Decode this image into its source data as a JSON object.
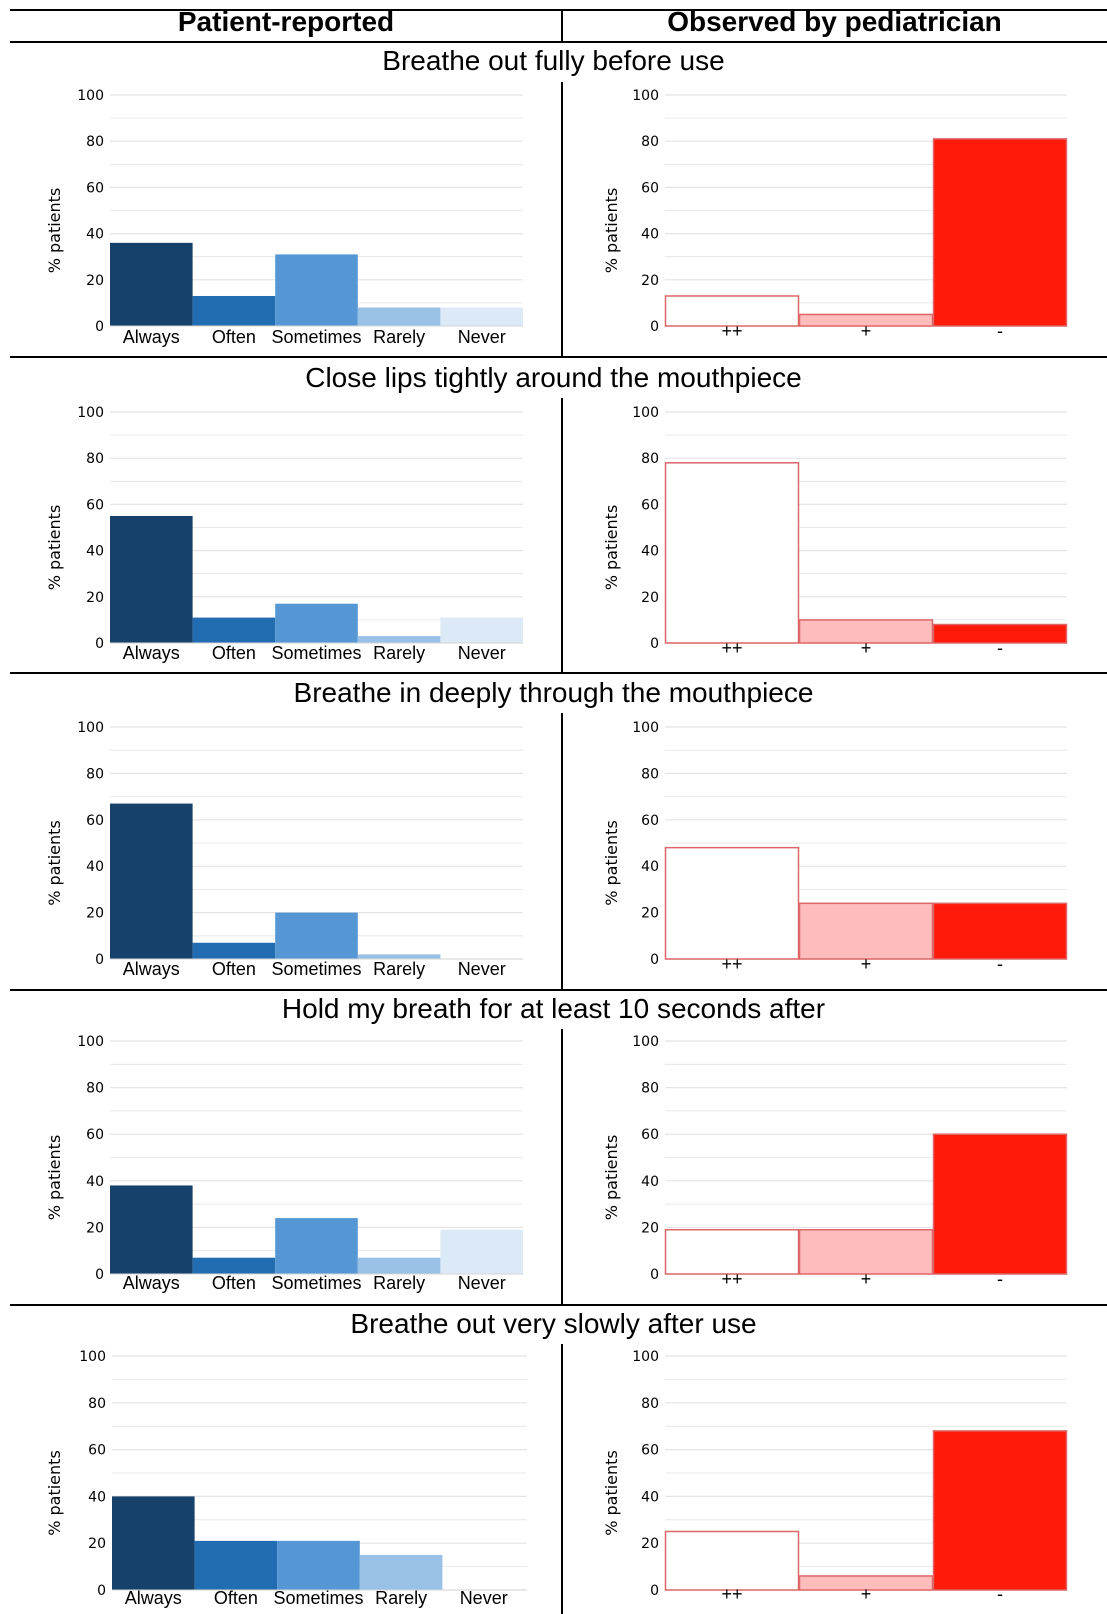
{
  "headers": {
    "left": "Patient-reported",
    "right": "Observed by pediatrician"
  },
  "colors": {
    "patient": [
      "#16416b",
      "#226db1",
      "#5497d4",
      "#99c1e6",
      "#dce9f6"
    ],
    "observer_fill": [
      "#ffffff",
      "#ffbcbc",
      "#ff1a0a"
    ],
    "observer_stroke": "#dd6666",
    "grid": "#e4e4e4"
  },
  "chart_data": [
    {
      "type": "bar",
      "title": "Breathe out fully before use",
      "panel": "Patient-reported",
      "categories": [
        "Always",
        "Often",
        "Sometimes",
        "Rarely",
        "Never"
      ],
      "values": [
        36,
        13,
        31,
        8,
        8
      ],
      "ylabel": "% patients",
      "yticks": [
        "0",
        "20",
        "40",
        "60",
        "80",
        "100"
      ],
      "ylim": [
        0,
        100
      ],
      "grid": true
    },
    {
      "type": "bar",
      "title": "Breathe out fully before use",
      "panel": "Observed by pediatrician",
      "categories": [
        "++",
        "+",
        "-"
      ],
      "values": [
        13,
        5,
        81
      ],
      "ylabel": "% patients",
      "yticks": [
        "0",
        "20",
        "40",
        "60",
        "80",
        "100"
      ],
      "ylim": [
        0,
        100
      ],
      "grid": true
    },
    {
      "type": "bar",
      "title": "Close lips tightly around the mouthpiece",
      "panel": "Patient-reported",
      "categories": [
        "Always",
        "Often",
        "Sometimes",
        "Rarely",
        "Never"
      ],
      "values": [
        55,
        11,
        17,
        3,
        11
      ],
      "ylabel": "% patients",
      "yticks": [
        "0",
        "20",
        "40",
        "60",
        "80",
        "100"
      ],
      "ylim": [
        0,
        100
      ],
      "grid": true
    },
    {
      "type": "bar",
      "title": "Close lips tightly around the mouthpiece",
      "panel": "Observed by pediatrician",
      "categories": [
        "++",
        "+",
        "-"
      ],
      "values": [
        78,
        10,
        8
      ],
      "ylabel": "% patients",
      "yticks": [
        "0",
        "20",
        "40",
        "60",
        "80",
        "100"
      ],
      "ylim": [
        0,
        100
      ],
      "grid": true
    },
    {
      "type": "bar",
      "title": "Breathe in deeply through the mouthpiece",
      "panel": "Patient-reported",
      "categories": [
        "Always",
        "Often",
        "Sometimes",
        "Rarely",
        "Never"
      ],
      "values": [
        67,
        7,
        20,
        2,
        0
      ],
      "ylabel": "% patients",
      "yticks": [
        "0",
        "20",
        "40",
        "60",
        "80",
        "100"
      ],
      "ylim": [
        0,
        100
      ],
      "grid": true
    },
    {
      "type": "bar",
      "title": "Breathe in deeply through the mouthpiece",
      "panel": "Observed by pediatrician",
      "categories": [
        "++",
        "+",
        "-"
      ],
      "values": [
        48,
        24,
        24
      ],
      "ylabel": "% patients",
      "yticks": [
        "0",
        "20",
        "40",
        "60",
        "80",
        "100"
      ],
      "ylim": [
        0,
        100
      ],
      "grid": true
    },
    {
      "type": "bar",
      "title": "Hold my breath for at least 10 seconds after",
      "panel": "Patient-reported",
      "categories": [
        "Always",
        "Often",
        "Sometimes",
        "Rarely",
        "Never"
      ],
      "values": [
        38,
        7,
        24,
        7,
        19
      ],
      "ylabel": "% patients",
      "yticks": [
        "0",
        "20",
        "40",
        "60",
        "80",
        "100"
      ],
      "ylim": [
        0,
        100
      ],
      "grid": true
    },
    {
      "type": "bar",
      "title": "Hold my breath for at least 10 seconds after",
      "panel": "Observed by pediatrician",
      "categories": [
        "++",
        "+",
        "-"
      ],
      "values": [
        19,
        19,
        60
      ],
      "ylabel": "% patients",
      "yticks": [
        "0",
        "20",
        "40",
        "60",
        "80",
        "100"
      ],
      "ylim": [
        0,
        100
      ],
      "grid": true
    },
    {
      "type": "bar",
      "title": "Breathe out very slowly after use",
      "panel": "Patient-reported",
      "categories": [
        "Always",
        "Often",
        "Sometimes",
        "Rarely",
        "Never"
      ],
      "values": [
        40,
        21,
        21,
        15,
        0
      ],
      "ylabel": "% patients",
      "yticks": [
        "0",
        "20",
        "40",
        "60",
        "80",
        "100"
      ],
      "ylim": [
        0,
        100
      ],
      "grid": true
    },
    {
      "type": "bar",
      "title": "Breathe out very slowly after use",
      "panel": "Observed by pediatrician",
      "categories": [
        "++",
        "+",
        "-"
      ],
      "values": [
        25,
        6,
        68
      ],
      "ylabel": "% patients",
      "yticks": [
        "0",
        "20",
        "40",
        "60",
        "80",
        "100"
      ],
      "ylim": [
        0,
        100
      ],
      "grid": true
    }
  ]
}
